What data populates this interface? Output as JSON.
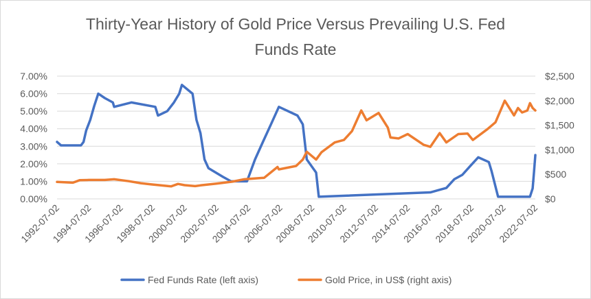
{
  "chart_data": {
    "type": "line",
    "title_lines": [
      "Thirty-Year History of Gold Price Versus Prevailing U.S. Fed",
      "Funds Rate"
    ],
    "x_axis": {
      "type": "date",
      "range": [
        "1992-07-02",
        "2022-07-02"
      ],
      "tick_labels": [
        "1992-07-02",
        "1994-07-02",
        "1996-07-02",
        "1998-07-02",
        "2000-07-02",
        "2002-07-02",
        "2004-07-02",
        "2006-07-02",
        "2008-07-02",
        "2010-07-02",
        "2012-07-02",
        "2014-07-02",
        "2016-07-02",
        "2018-07-02",
        "2020-07-02",
        "2022-07-02"
      ]
    },
    "y_left": {
      "range": [
        0,
        7
      ],
      "tick_labels": [
        "0.00%",
        "1.00%",
        "2.00%",
        "3.00%",
        "4.00%",
        "5.00%",
        "6.00%",
        "7.00%"
      ]
    },
    "y_right": {
      "range": [
        0,
        2500
      ],
      "tick_labels": [
        "$0",
        "$500",
        "$1,000",
        "$1,500",
        "$2,000",
        "$2,500"
      ]
    },
    "grid": "horizontal",
    "legend_position": "bottom",
    "series": [
      {
        "name": "Fed Funds Rate (left axis)",
        "axis": "left",
        "color": "#4472c4",
        "points": [
          [
            "1992-07-02",
            3.25
          ],
          [
            "1992-10-01",
            3.05
          ],
          [
            "1993-07-01",
            3.05
          ],
          [
            "1994-01-01",
            3.05
          ],
          [
            "1994-03-01",
            3.25
          ],
          [
            "1994-05-01",
            3.9
          ],
          [
            "1994-08-01",
            4.5
          ],
          [
            "1994-11-01",
            5.3
          ],
          [
            "1995-02-01",
            6.0
          ],
          [
            "1995-07-01",
            5.75
          ],
          [
            "1996-01-01",
            5.5
          ],
          [
            "1996-02-01",
            5.25
          ],
          [
            "1997-03-01",
            5.5
          ],
          [
            "1998-09-01",
            5.25
          ],
          [
            "1998-11-01",
            4.75
          ],
          [
            "1999-06-01",
            5.0
          ],
          [
            "1999-11-01",
            5.5
          ],
          [
            "2000-03-01",
            6.0
          ],
          [
            "2000-05-01",
            6.5
          ],
          [
            "2001-01-01",
            6.0
          ],
          [
            "2001-04-01",
            4.5
          ],
          [
            "2001-07-01",
            3.75
          ],
          [
            "2001-10-01",
            2.25
          ],
          [
            "2002-01-01",
            1.75
          ],
          [
            "2002-12-01",
            1.25
          ],
          [
            "2003-06-01",
            1.0
          ],
          [
            "2004-06-01",
            1.0
          ],
          [
            "2004-12-01",
            2.25
          ],
          [
            "2005-06-01",
            3.25
          ],
          [
            "2005-12-01",
            4.25
          ],
          [
            "2006-06-01",
            5.25
          ],
          [
            "2007-08-01",
            4.75
          ],
          [
            "2007-12-01",
            4.25
          ],
          [
            "2008-03-01",
            2.25
          ],
          [
            "2008-10-01",
            1.5
          ],
          [
            "2008-12-01",
            0.12
          ],
          [
            "2015-12-01",
            0.37
          ],
          [
            "2016-12-01",
            0.62
          ],
          [
            "2017-06-01",
            1.12
          ],
          [
            "2017-12-01",
            1.37
          ],
          [
            "2018-06-01",
            1.87
          ],
          [
            "2018-12-01",
            2.37
          ],
          [
            "2019-08-01",
            2.1
          ],
          [
            "2019-10-01",
            1.6
          ],
          [
            "2020-03-01",
            0.12
          ],
          [
            "2022-03-01",
            0.12
          ],
          [
            "2022-05-01",
            0.6
          ],
          [
            "2022-06-01",
            1.5
          ],
          [
            "2022-07-02",
            2.5
          ]
        ]
      },
      {
        "name": "Gold Price, in US$ (right axis)",
        "axis": "right",
        "color": "#ed7d31",
        "points": [
          [
            "1992-07-02",
            345
          ],
          [
            "1993-07-01",
            330
          ],
          [
            "1993-12-01",
            380
          ],
          [
            "1994-07-01",
            385
          ],
          [
            "1995-07-01",
            385
          ],
          [
            "1996-02-01",
            400
          ],
          [
            "1997-01-01",
            360
          ],
          [
            "1997-10-01",
            320
          ],
          [
            "1998-06-01",
            295
          ],
          [
            "1999-07-01",
            260
          ],
          [
            "1999-09-01",
            255
          ],
          [
            "2000-02-01",
            305
          ],
          [
            "2000-07-01",
            280
          ],
          [
            "2001-03-01",
            260
          ],
          [
            "2001-07-01",
            275
          ],
          [
            "2002-07-01",
            310
          ],
          [
            "2003-07-01",
            350
          ],
          [
            "2004-04-01",
            400
          ],
          [
            "2005-07-01",
            430
          ],
          [
            "2006-05-01",
            650
          ],
          [
            "2006-06-01",
            600
          ],
          [
            "2007-07-01",
            670
          ],
          [
            "2007-12-01",
            800
          ],
          [
            "2008-03-01",
            960
          ],
          [
            "2008-10-01",
            800
          ],
          [
            "2009-02-01",
            950
          ],
          [
            "2009-12-01",
            1150
          ],
          [
            "2010-07-01",
            1200
          ],
          [
            "2011-01-01",
            1380
          ],
          [
            "2011-08-01",
            1800
          ],
          [
            "2011-12-01",
            1600
          ],
          [
            "2012-09-01",
            1750
          ],
          [
            "2013-04-01",
            1450
          ],
          [
            "2013-06-01",
            1250
          ],
          [
            "2013-12-01",
            1230
          ],
          [
            "2014-07-01",
            1320
          ],
          [
            "2015-07-01",
            1100
          ],
          [
            "2015-12-01",
            1060
          ],
          [
            "2016-07-01",
            1340
          ],
          [
            "2016-12-01",
            1150
          ],
          [
            "2017-09-01",
            1320
          ],
          [
            "2018-04-01",
            1330
          ],
          [
            "2018-08-01",
            1200
          ],
          [
            "2019-07-01",
            1420
          ],
          [
            "2020-01-01",
            1560
          ],
          [
            "2020-08-01",
            2000
          ],
          [
            "2021-03-01",
            1700
          ],
          [
            "2021-06-01",
            1850
          ],
          [
            "2021-09-01",
            1760
          ],
          [
            "2022-01-01",
            1800
          ],
          [
            "2022-03-01",
            1950
          ],
          [
            "2022-05-01",
            1850
          ],
          [
            "2022-07-02",
            1800
          ]
        ]
      }
    ]
  }
}
